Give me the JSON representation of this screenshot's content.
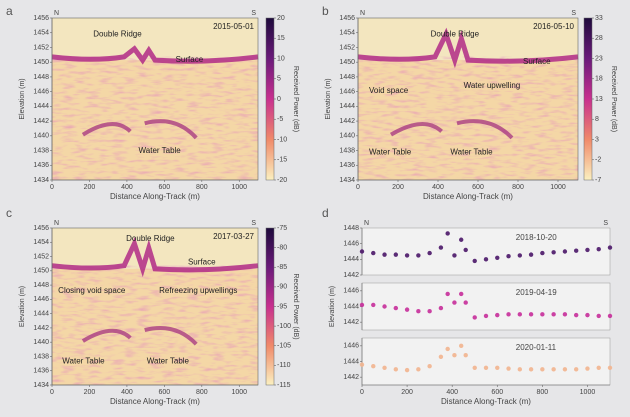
{
  "chart_data": [
    {
      "type": "radargram",
      "panel_label": "a",
      "date": "2015-05-01",
      "left_label": "N",
      "right_label": "S",
      "xlabel": "Distance Along-Track (m)",
      "ylabel": "Elevation (m)",
      "colorbar_label": "Received Power (dB)",
      "xlim": [
        0,
        1100
      ],
      "ylim": [
        1434,
        1456
      ],
      "xticks": [
        0,
        200,
        400,
        600,
        800,
        1000
      ],
      "yticks": [
        1434,
        1436,
        1438,
        1440,
        1442,
        1444,
        1446,
        1448,
        1450,
        1452,
        1454,
        1456
      ],
      "clim": [
        -20,
        20
      ],
      "cticks": [
        20,
        15,
        10,
        5,
        0,
        -5,
        -10,
        -15,
        -20
      ],
      "annotations": [
        "Double Ridge",
        "Surface",
        "Water Table"
      ]
    },
    {
      "type": "radargram",
      "panel_label": "b",
      "date": "2016-05-10",
      "left_label": "N",
      "right_label": "S",
      "xlabel": "Distance Along-Track (m)",
      "ylabel": "Elevation (m)",
      "colorbar_label": "Received Power (dB)",
      "xlim": [
        0,
        1100
      ],
      "ylim": [
        1434,
        1456
      ],
      "xticks": [
        0,
        200,
        400,
        600,
        800,
        1000
      ],
      "yticks": [
        1434,
        1436,
        1438,
        1440,
        1442,
        1444,
        1446,
        1448,
        1450,
        1452,
        1454,
        1456
      ],
      "clim": [
        -7,
        33
      ],
      "cticks": [
        33,
        28,
        23,
        18,
        13,
        8,
        3,
        -2,
        -7
      ],
      "annotations": [
        "Double Ridge",
        "Surface",
        "Void space",
        "Water upwelling",
        "Water Table",
        "Water Table"
      ]
    },
    {
      "type": "radargram",
      "panel_label": "c",
      "date": "2017-03-27",
      "left_label": "N",
      "right_label": "S",
      "xlabel": "Distance Along-Track (m)",
      "ylabel": "Elevation (m)",
      "colorbar_label": "Received Power (dB)",
      "xlim": [
        0,
        1100
      ],
      "ylim": [
        1434,
        1456
      ],
      "xticks": [
        0,
        200,
        400,
        600,
        800,
        1000
      ],
      "yticks": [
        1434,
        1436,
        1438,
        1440,
        1442,
        1444,
        1446,
        1448,
        1450,
        1452,
        1454,
        1456
      ],
      "clim": [
        -115,
        -75
      ],
      "cticks": [
        -75,
        -80,
        -85,
        -90,
        -95,
        -100,
        -105,
        -110,
        -115
      ],
      "annotations": [
        "Double Ridge",
        "Surface",
        "Closing void space",
        "Refreezing upwellings",
        "Water Table",
        "Water Table"
      ]
    },
    {
      "type": "scatter",
      "panel_label": "d",
      "left_label": "N",
      "right_label": "S",
      "xlabel": "Distance Along-Track (m)",
      "ylabel": "Elevation (m)",
      "xlim": [
        0,
        1100
      ],
      "xticks": [
        0,
        200,
        400,
        600,
        800,
        1000
      ],
      "x": [
        0,
        50,
        100,
        150,
        200,
        250,
        300,
        350,
        380,
        410,
        440,
        460,
        500,
        550,
        600,
        650,
        700,
        750,
        800,
        850,
        900,
        950,
        1000,
        1050,
        1100
      ],
      "series": [
        {
          "name": "2018-10-20",
          "color": "#4a1668",
          "ylim": [
            1442,
            1448
          ],
          "yticks": [
            1442,
            1444,
            1446,
            1448
          ],
          "values": [
            1445,
            1444.8,
            1444.6,
            1444.6,
            1444.5,
            1444.5,
            1444.8,
            1445.5,
            1447.3,
            1444.5,
            1446.5,
            1445.2,
            1443.8,
            1444,
            1444.2,
            1444.4,
            1444.5,
            1444.6,
            1444.8,
            1444.9,
            1445,
            1445.1,
            1445.2,
            1445.3,
            1445.5
          ]
        },
        {
          "name": "2019-04-19",
          "color": "#c62d9a",
          "ylim": [
            1441,
            1447
          ],
          "yticks": [
            1442,
            1444,
            1446
          ],
          "values": [
            1444.2,
            1444.2,
            1444,
            1443.8,
            1443.6,
            1443.4,
            1443.4,
            1443.8,
            1445.6,
            1444.5,
            1445.6,
            1444.5,
            1442.6,
            1442.8,
            1442.9,
            1443,
            1443,
            1443,
            1443,
            1443,
            1443,
            1442.9,
            1442.9,
            1442.8,
            1442.8
          ]
        },
        {
          "name": "2020-01-11",
          "color": "#f2b48e",
          "ylim": [
            1441,
            1447
          ],
          "yticks": [
            1442,
            1444,
            1446
          ],
          "values": [
            1443.6,
            1443.4,
            1443.2,
            1443,
            1442.9,
            1443,
            1443.4,
            1444.6,
            1445.6,
            1444.8,
            1446,
            1444.8,
            1443.2,
            1443.2,
            1443.2,
            1443.1,
            1443,
            1443,
            1443,
            1443,
            1443,
            1443,
            1443.1,
            1443.2,
            1443.2
          ]
        }
      ]
    }
  ]
}
